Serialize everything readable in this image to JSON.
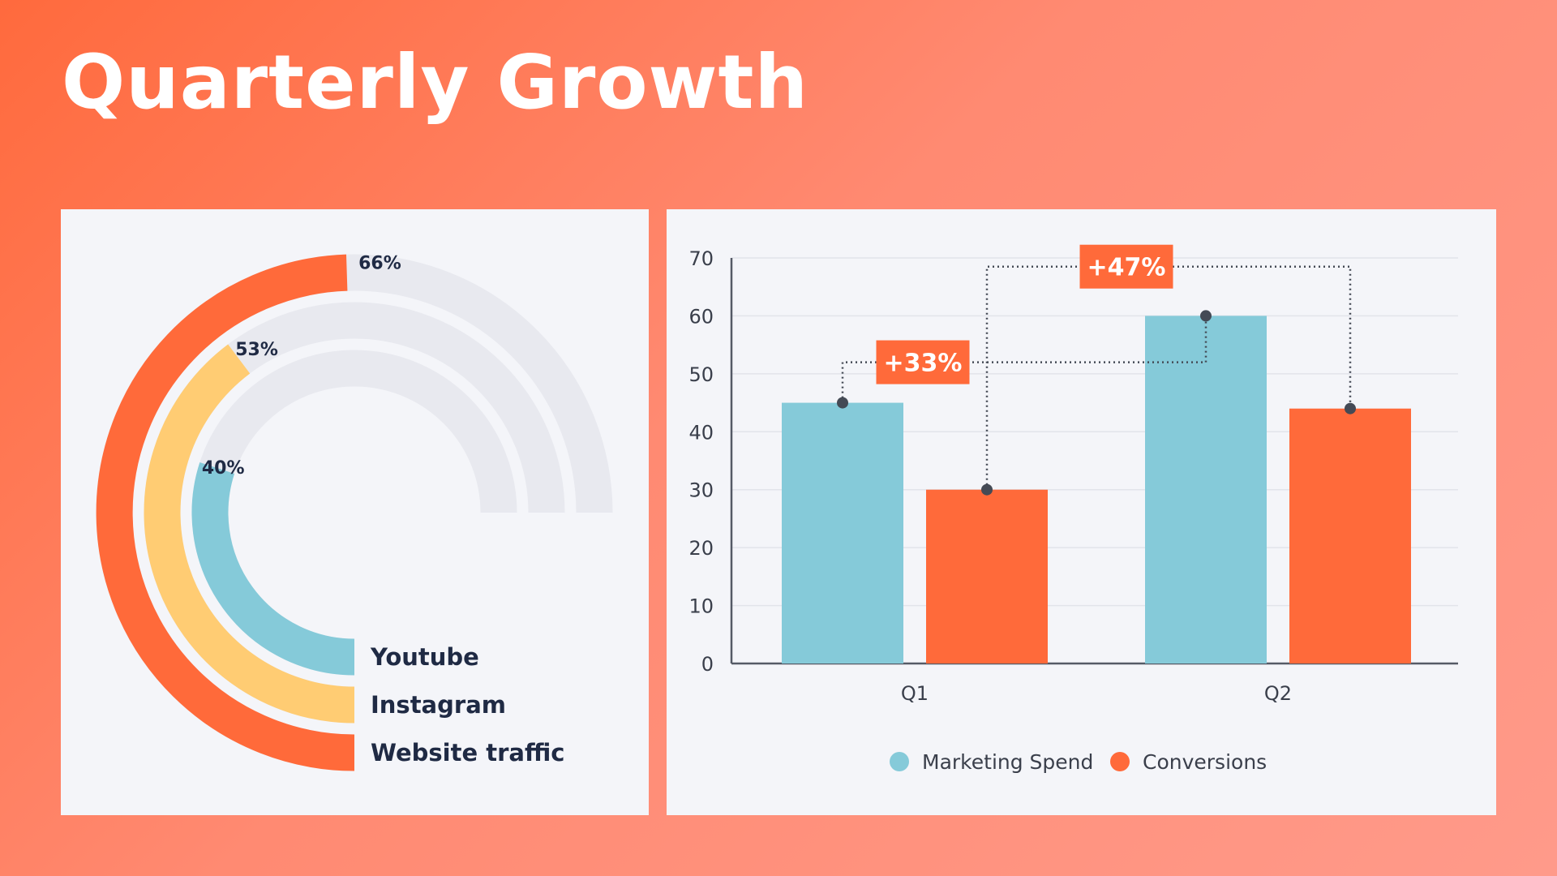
{
  "page": {
    "title": "Quarterly Growth"
  },
  "colors": {
    "orange": "#ff6a3a",
    "yellow": "#ffcc73",
    "blue": "#85cad9",
    "track": "#e8e9ef",
    "text": "#1f2a44"
  },
  "chart_data": [
    {
      "type": "radial-bar",
      "max_percent": 100,
      "series": [
        {
          "name": "Website traffic",
          "value": 66,
          "label": "66%",
          "color": "#ff6a3a"
        },
        {
          "name": "Instagram",
          "value": 53,
          "label": "53%",
          "color": "#ffcc73"
        },
        {
          "name": "Youtube",
          "value": 40,
          "label": "40%",
          "color": "#85cad9"
        }
      ]
    },
    {
      "type": "bar",
      "categories": [
        "Q1",
        "Q2"
      ],
      "series": [
        {
          "name": "Marketing Spend",
          "values": [
            45,
            60
          ],
          "color": "#85cad9"
        },
        {
          "name": "Conversions",
          "values": [
            30,
            44
          ],
          "color": "#ff6a3a"
        }
      ],
      "ylim": [
        0,
        70
      ],
      "yticks": [
        0,
        10,
        20,
        30,
        40,
        50,
        60,
        70
      ],
      "title": "",
      "xlabel": "",
      "ylabel": "",
      "legend_position": "bottom-center",
      "annotations": [
        {
          "text": "+33%",
          "from": "Marketing Spend Q1",
          "to": "Marketing Spend Q2"
        },
        {
          "text": "+47%",
          "from": "Conversions Q1",
          "to": "Conversions Q2"
        }
      ]
    }
  ]
}
